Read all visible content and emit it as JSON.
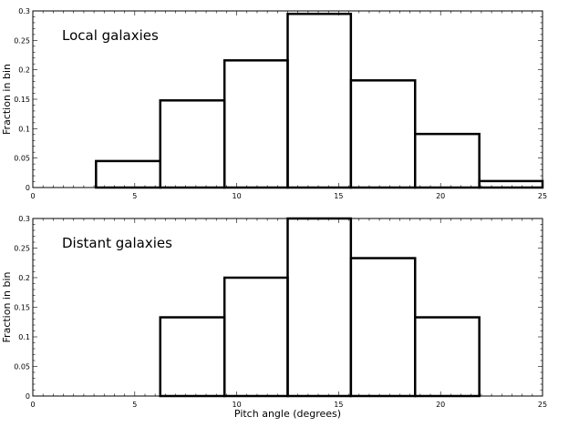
{
  "chart_data": [
    {
      "type": "bar",
      "annotation": "Local galaxies",
      "xlabel": "",
      "ylabel": "Fraction in bin",
      "xlim": [
        0,
        25
      ],
      "ylim": [
        0,
        0.3
      ],
      "xticks": [
        "0",
        "5",
        "10",
        "15",
        "20",
        "25"
      ],
      "yticks": [
        "0",
        "0.05",
        "0.1",
        "0.15",
        "0.2",
        "0.25",
        "0.3"
      ],
      "bin_edges": [
        0,
        3.1,
        6.25,
        9.4,
        12.5,
        15.6,
        18.75,
        21.9,
        25
      ],
      "values": [
        0.0,
        0.045,
        0.148,
        0.216,
        0.295,
        0.182,
        0.091,
        0.011
      ],
      "grid": false,
      "legend": "none"
    },
    {
      "type": "bar",
      "annotation": "Distant galaxies",
      "xlabel": "Pitch angle (degrees)",
      "ylabel": "Fraction in bin",
      "xlim": [
        0,
        25
      ],
      "ylim": [
        0,
        0.3
      ],
      "xticks": [
        "0",
        "5",
        "10",
        "15",
        "20",
        "25"
      ],
      "yticks": [
        "0",
        "0.05",
        "0.1",
        "0.15",
        "0.2",
        "0.25",
        "0.3"
      ],
      "bin_edges": [
        0,
        3.1,
        6.25,
        9.4,
        12.5,
        15.6,
        18.75,
        21.9,
        25
      ],
      "values": [
        0.0,
        0.0,
        0.133,
        0.2,
        0.3,
        0.233,
        0.133,
        0.0
      ],
      "grid": false,
      "legend": "none"
    }
  ]
}
